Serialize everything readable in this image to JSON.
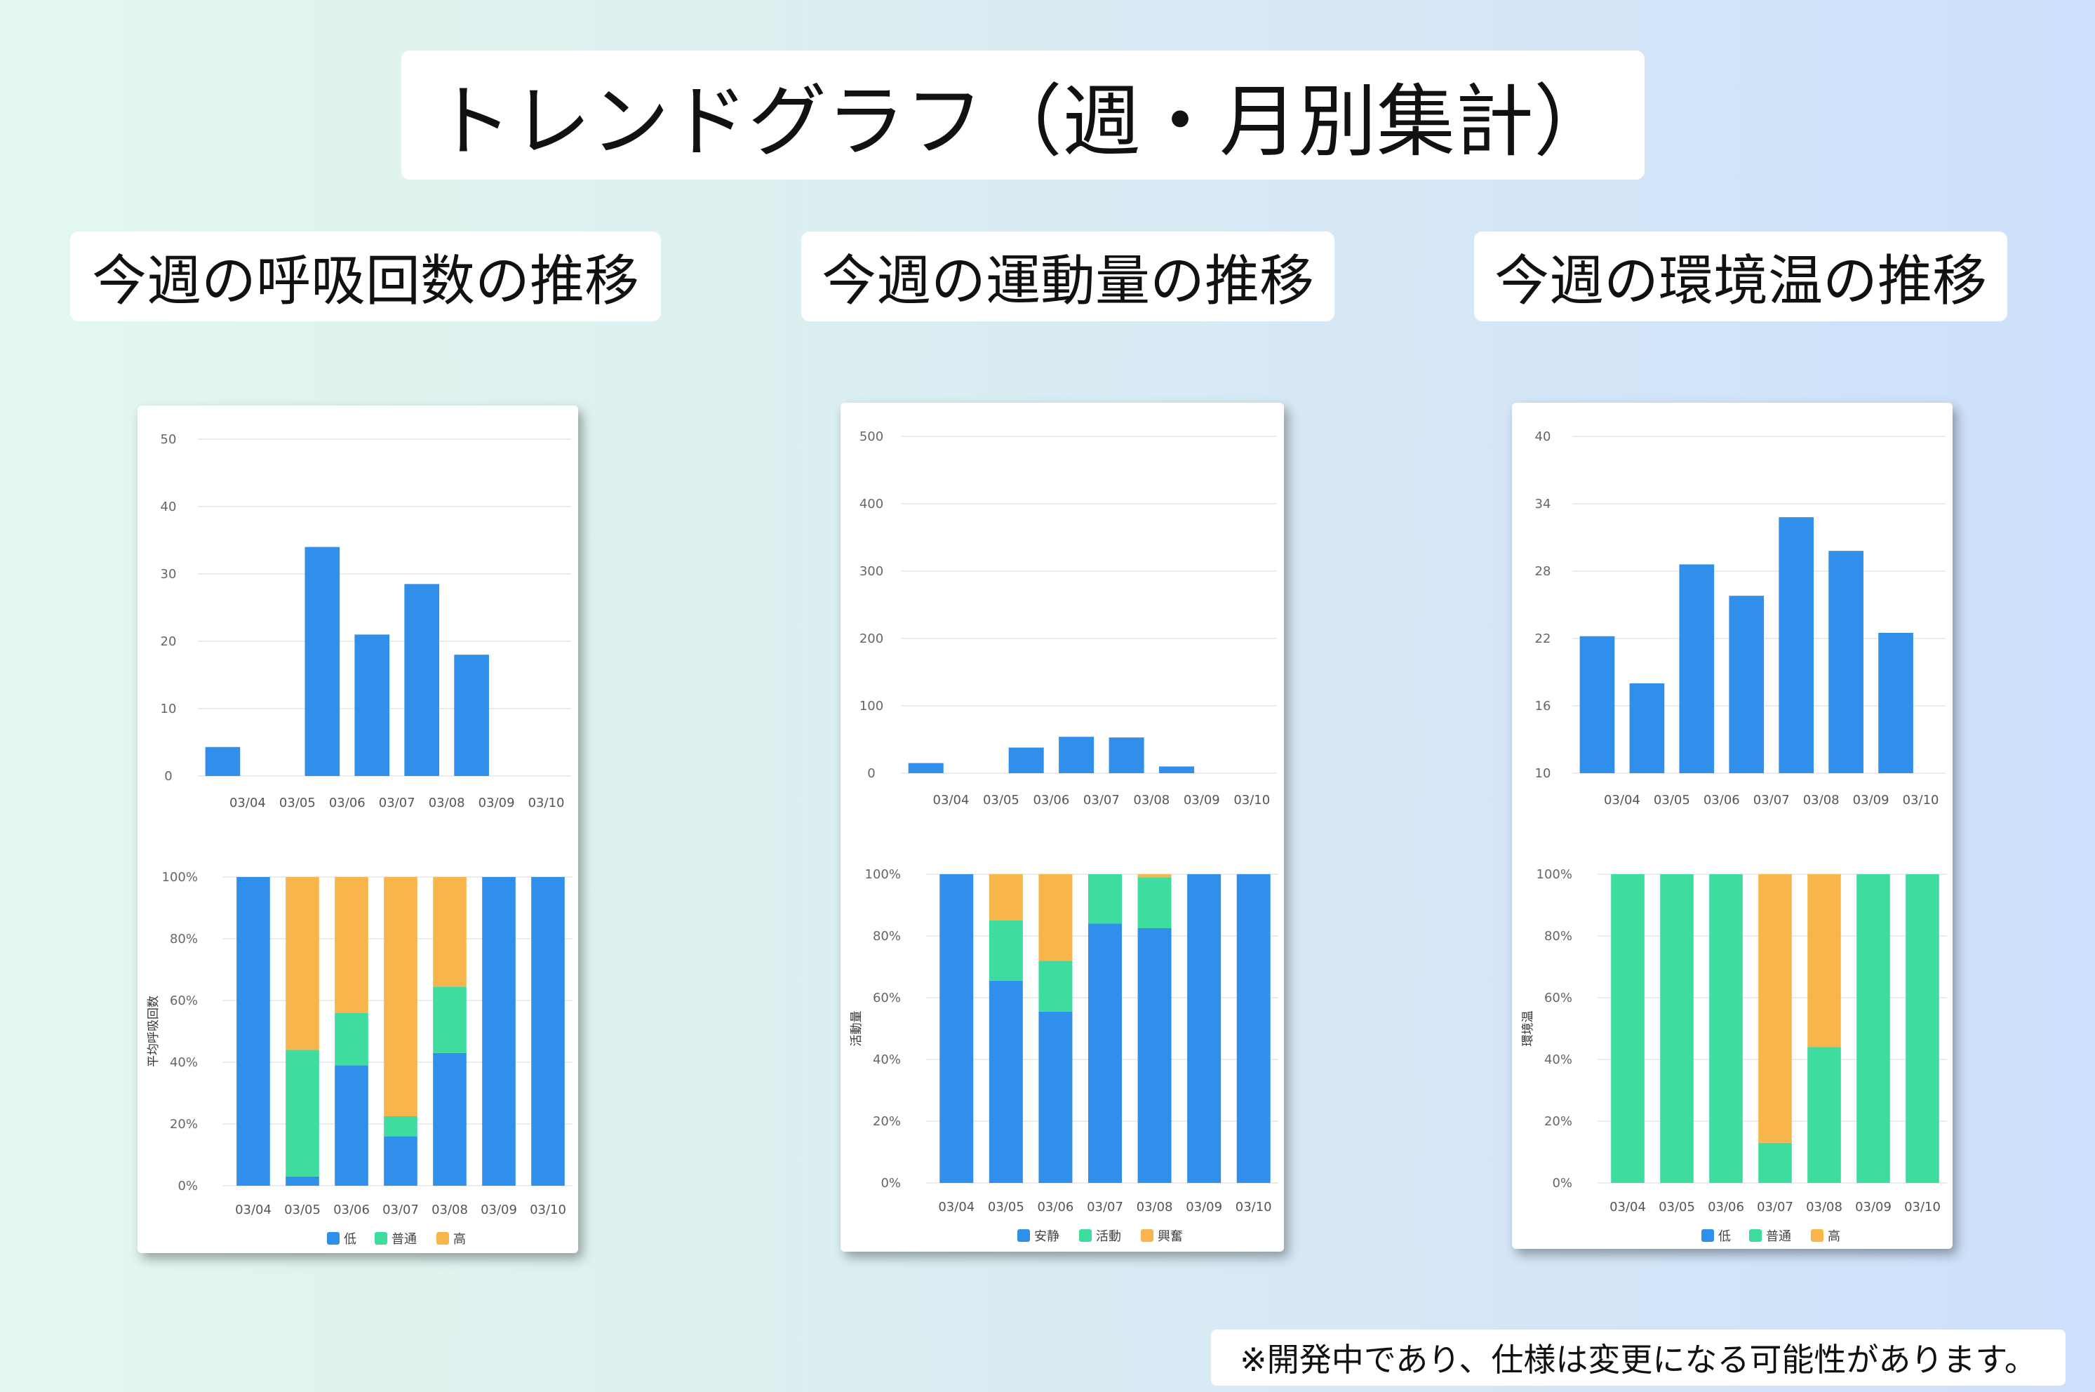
{
  "title": "トレンドグラフ（週・月別集計）",
  "footnote": "※開発中であり、仕様は変更になる可能性があります。",
  "colors": {
    "bar": "#2f8fea",
    "low": "#2f8fea",
    "mid": "#3fdc9f",
    "high": "#f8b54c"
  },
  "sections": [
    {
      "heading": "今週の呼吸回数の推移",
      "top_chart": {
        "y_ticks": [
          "0",
          "10",
          "20",
          "30",
          "40",
          "50"
        ],
        "y_range": [
          0,
          50
        ],
        "categories": [
          "03/04",
          "03/05",
          "03/06",
          "03/07",
          "03/08",
          "03/09",
          "03/10"
        ],
        "values": [
          4.3,
          null,
          34,
          21,
          28.5,
          18,
          null
        ]
      },
      "bottom_chart": {
        "y_ticks": [
          "0%",
          "20%",
          "40%",
          "60%",
          "80%",
          "100%"
        ],
        "ylabel": "平均呼吸回数",
        "categories": [
          "03/04",
          "03/05",
          "03/06",
          "03/07",
          "03/08",
          "03/09",
          "03/10"
        ],
        "legend": [
          "低",
          "普通",
          "高"
        ],
        "series": [
          {
            "name": "低",
            "values": [
              100,
              3,
              39,
              16,
              43,
              100,
              100
            ]
          },
          {
            "name": "普通",
            "values": [
              0,
              41,
              17,
              6.5,
              21.5,
              0,
              0
            ]
          },
          {
            "name": "高",
            "values": [
              0,
              56,
              44,
              77.5,
              35.5,
              0,
              0
            ]
          }
        ]
      }
    },
    {
      "heading": "今週の運動量の推移",
      "top_chart": {
        "y_ticks": [
          "0",
          "100",
          "200",
          "300",
          "400",
          "500"
        ],
        "y_range": [
          0,
          500
        ],
        "categories": [
          "03/04",
          "03/05",
          "03/06",
          "03/07",
          "03/08",
          "03/09",
          "03/10"
        ],
        "values": [
          15,
          null,
          38,
          54,
          53,
          10,
          null
        ]
      },
      "bottom_chart": {
        "y_ticks": [
          "0%",
          "20%",
          "40%",
          "60%",
          "80%",
          "100%"
        ],
        "ylabel": "活動量",
        "categories": [
          "03/04",
          "03/05",
          "03/06",
          "03/07",
          "03/08",
          "03/09",
          "03/10"
        ],
        "legend": [
          "安静",
          "活動",
          "興奮"
        ],
        "series": [
          {
            "name": "安静",
            "values": [
              100,
              65.5,
              55.5,
              84,
              82.5,
              100,
              100
            ]
          },
          {
            "name": "活動",
            "values": [
              0,
              19.5,
              16.5,
              16,
              16.5,
              0,
              0
            ]
          },
          {
            "name": "興奮",
            "values": [
              0,
              15,
              28,
              0,
              1,
              0,
              0
            ]
          }
        ]
      }
    },
    {
      "heading": "今週の環境温の推移",
      "top_chart": {
        "y_ticks": [
          "10",
          "16",
          "22",
          "28",
          "34",
          "40"
        ],
        "y_range": [
          10,
          40
        ],
        "categories": [
          "03/04",
          "03/05",
          "03/06",
          "03/07",
          "03/08",
          "03/09",
          "03/10"
        ],
        "values": [
          22.2,
          18,
          28.6,
          25.8,
          32.8,
          29.8,
          22.5
        ]
      },
      "bottom_chart": {
        "y_ticks": [
          "0%",
          "20%",
          "40%",
          "60%",
          "80%",
          "100%"
        ],
        "ylabel": "環境温",
        "categories": [
          "03/04",
          "03/05",
          "03/06",
          "03/07",
          "03/08",
          "03/09",
          "03/10"
        ],
        "legend": [
          "低",
          "普通",
          "高"
        ],
        "series": [
          {
            "name": "低",
            "values": [
              0,
              0,
              0,
              0,
              0,
              0,
              0
            ]
          },
          {
            "name": "普通",
            "values": [
              100,
              100,
              100,
              13,
              44,
              100,
              100
            ]
          },
          {
            "name": "高",
            "values": [
              0,
              0,
              0,
              87,
              56,
              0,
              0
            ]
          }
        ]
      }
    }
  ]
}
